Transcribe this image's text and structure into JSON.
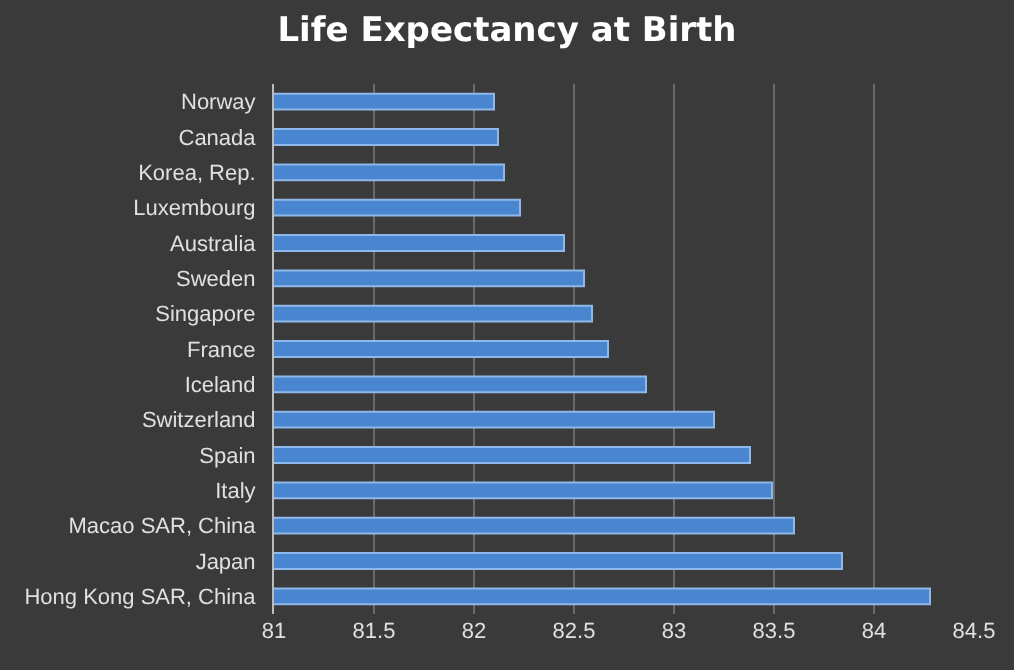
{
  "chart_data": {
    "type": "bar",
    "orientation": "horizontal",
    "title": "Life Expectancy at Birth",
    "categories": [
      "Norway",
      "Canada",
      "Korea, Rep.",
      "Luxembourg",
      "Australia",
      "Sweden",
      "Singapore",
      "France",
      "Iceland",
      "Switzerland",
      "Spain",
      "Italy",
      "Macao SAR, China",
      "Japan",
      "Hong Kong SAR, China"
    ],
    "values": [
      82.1,
      82.12,
      82.15,
      82.23,
      82.45,
      82.55,
      82.59,
      82.67,
      82.86,
      83.2,
      83.38,
      83.49,
      83.6,
      83.84,
      84.28
    ],
    "color": "#4a86d0",
    "xlim": [
      81,
      84.5
    ],
    "xticks": [
      81,
      81.5,
      82,
      82.5,
      83,
      83.5,
      84,
      84.5
    ],
    "grid": "x"
  }
}
